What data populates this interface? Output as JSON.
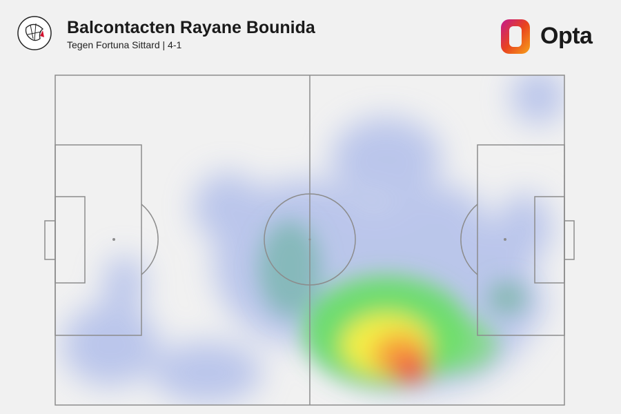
{
  "header": {
    "title": "Balcontacten Rayane Bounida",
    "subtitle": "Tegen Fortuna Sittard | 4-1",
    "brand": "Opta"
  }
}
